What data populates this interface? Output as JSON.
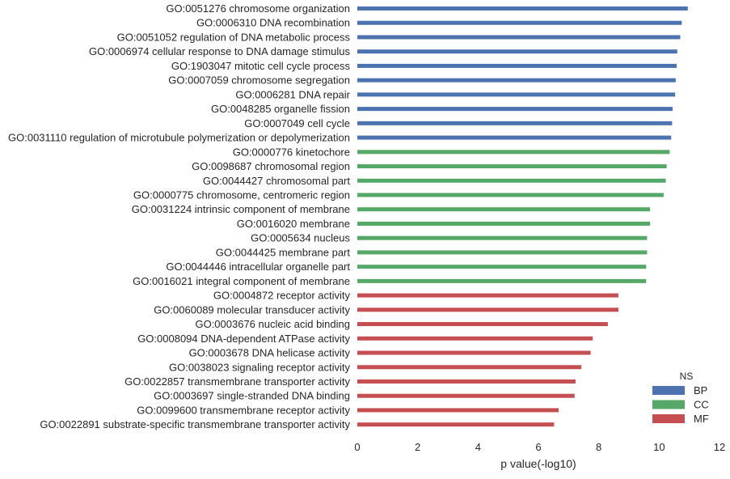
{
  "chart_data": {
    "type": "bar",
    "orientation": "horizontal",
    "xlabel": "p value(-log10)",
    "xlim": [
      0,
      12
    ],
    "xticks": [
      "0",
      "2",
      "4",
      "6",
      "8",
      "10",
      "12"
    ],
    "grid": false,
    "legend": {
      "title": "NS",
      "placement": "bottom-right",
      "entries": [
        {
          "label": "BP",
          "color": "#4c72b0"
        },
        {
          "label": "CC",
          "color": "#55a868"
        },
        {
          "label": "MF",
          "color": "#c44e52"
        }
      ]
    },
    "categories": [
      "GO:0051276 chromosome organization",
      "GO:0006310 DNA recombination",
      "GO:0051052 regulation of DNA metabolic process",
      "GO:0006974 cellular response to DNA damage stimulus",
      "GO:1903047 mitotic cell cycle process",
      "GO:0007059 chromosome segregation",
      "GO:0006281 DNA repair",
      "GO:0048285 organelle fission",
      "GO:0007049 cell cycle",
      "GO:0031110 regulation of microtubule polymerization or depolymerization",
      "GO:0000776 kinetochore",
      "GO:0098687 chromosomal region",
      "GO:0044427 chromosomal part",
      "GO:0000775 chromosome, centromeric region",
      "GO:0031224 intrinsic component of membrane",
      "GO:0016020 membrane",
      "GO:0005634 nucleus",
      "GO:0044425 membrane part",
      "GO:0044446 intracellular organelle part",
      "GO:0016021 integral component of membrane",
      "GO:0004872 receptor activity",
      "GO:0060089 molecular transducer activity",
      "GO:0003676 nucleic acid binding",
      "GO:0008094 DNA-dependent ATPase activity",
      "GO:0003678 DNA helicase activity",
      "GO:0038023 signaling receptor activity",
      "GO:0022857 transmembrane transporter activity",
      "GO:0003697 single-stranded DNA binding",
      "GO:0099600 transmembrane receptor activity",
      "GO:0022891 substrate-specific transmembrane transporter activity"
    ],
    "values": [
      10.95,
      10.75,
      10.7,
      10.6,
      10.58,
      10.55,
      10.53,
      10.45,
      10.43,
      10.4,
      10.35,
      10.25,
      10.22,
      10.15,
      9.7,
      9.7,
      9.6,
      9.6,
      9.57,
      9.57,
      8.65,
      8.65,
      8.3,
      7.8,
      7.73,
      7.42,
      7.23,
      7.2,
      6.67,
      6.52
    ],
    "namespaces": [
      "BP",
      "BP",
      "BP",
      "BP",
      "BP",
      "BP",
      "BP",
      "BP",
      "BP",
      "BP",
      "CC",
      "CC",
      "CC",
      "CC",
      "CC",
      "CC",
      "CC",
      "CC",
      "CC",
      "CC",
      "MF",
      "MF",
      "MF",
      "MF",
      "MF",
      "MF",
      "MF",
      "MF",
      "MF",
      "MF"
    ]
  }
}
